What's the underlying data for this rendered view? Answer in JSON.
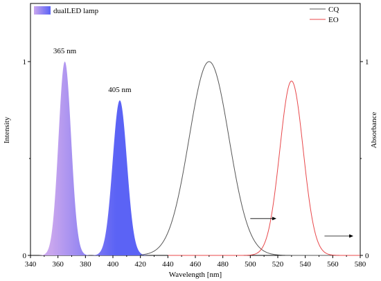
{
  "chart_data": {
    "type": "area",
    "xlabel": "Wavelength [nm]",
    "ylabel_left": "Intensity",
    "ylabel_right": "Absorbance",
    "xlim": [
      340,
      580
    ],
    "ylim_left": [
      0,
      1.3
    ],
    "ylim_right": [
      0,
      1.3
    ],
    "x_ticks": [
      340,
      360,
      380,
      400,
      420,
      440,
      460,
      480,
      500,
      520,
      540,
      560,
      580
    ],
    "y_ticks_left": [
      0,
      1
    ],
    "y_ticks_right": [
      0,
      1
    ],
    "lamp": {
      "legend": "dualLED lamp",
      "color_light": "#c9a6ee",
      "color_dark": "#5b63f5",
      "peaks": [
        {
          "label": "365 nm",
          "center": 365,
          "height": 1.0,
          "sigma": 4.6
        },
        {
          "label": "405 nm",
          "center": 405,
          "height": 0.8,
          "sigma": 5.2
        }
      ]
    },
    "series": [
      {
        "name": "CQ",
        "color": "#555555",
        "center": 470,
        "height": 1.0,
        "sigma": 14.5
      },
      {
        "name": "EO",
        "color": "#e8474a",
        "center": 530,
        "height": 0.9,
        "sigma": 8.5
      }
    ],
    "legend_position": "top-right",
    "arrows": [
      {
        "x_from": 500,
        "x_to": 519,
        "y": 0.19
      },
      {
        "x_from": 554,
        "x_to": 575,
        "y": 0.1
      }
    ]
  }
}
